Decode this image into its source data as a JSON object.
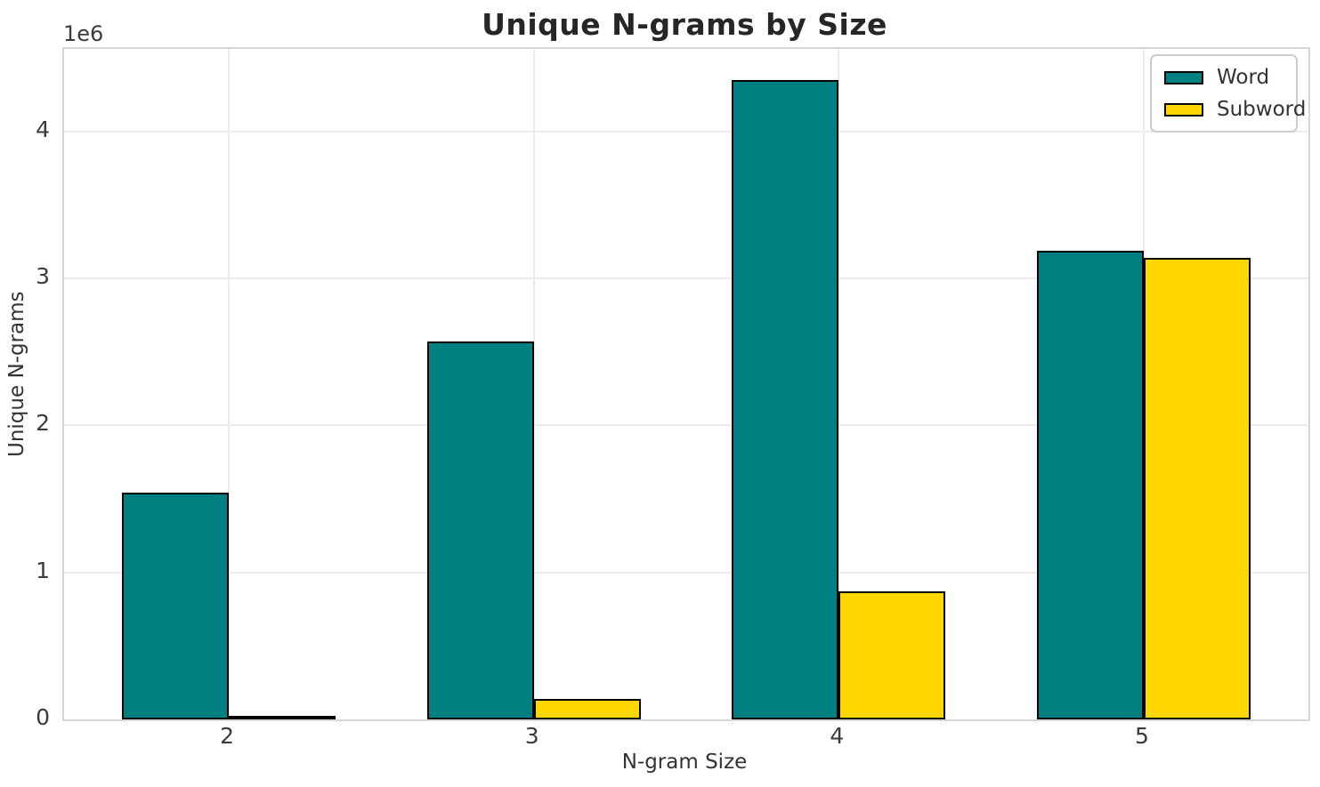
{
  "chart_data": {
    "type": "bar",
    "title": "Unique N-grams by Size",
    "xlabel": "N-gram Size",
    "ylabel": "Unique N-grams",
    "y_offset_text": "1e6",
    "categories": [
      "2",
      "3",
      "4",
      "5"
    ],
    "series": [
      {
        "name": "Word",
        "color": "#008080",
        "values": [
          1540000,
          2570000,
          4350000,
          3190000
        ]
      },
      {
        "name": "Subword",
        "color": "#FFD700",
        "values": [
          20000,
          140000,
          870000,
          3140000
        ]
      }
    ],
    "bar_edge_color": "#000000",
    "bar_width_units": 0.35,
    "xlim": [
      1.46,
      5.54
    ],
    "ylim": [
      0,
      4560000
    ],
    "yticks": [
      {
        "value": 0,
        "label": "0"
      },
      {
        "value": 1000000,
        "label": "1"
      },
      {
        "value": 2000000,
        "label": "2"
      },
      {
        "value": 3000000,
        "label": "3"
      },
      {
        "value": 4000000,
        "label": "4"
      }
    ],
    "grid": true,
    "legend_position": "upper right",
    "background": "#ffffff",
    "grid_color": "#ececec",
    "text_color": "#333333"
  }
}
